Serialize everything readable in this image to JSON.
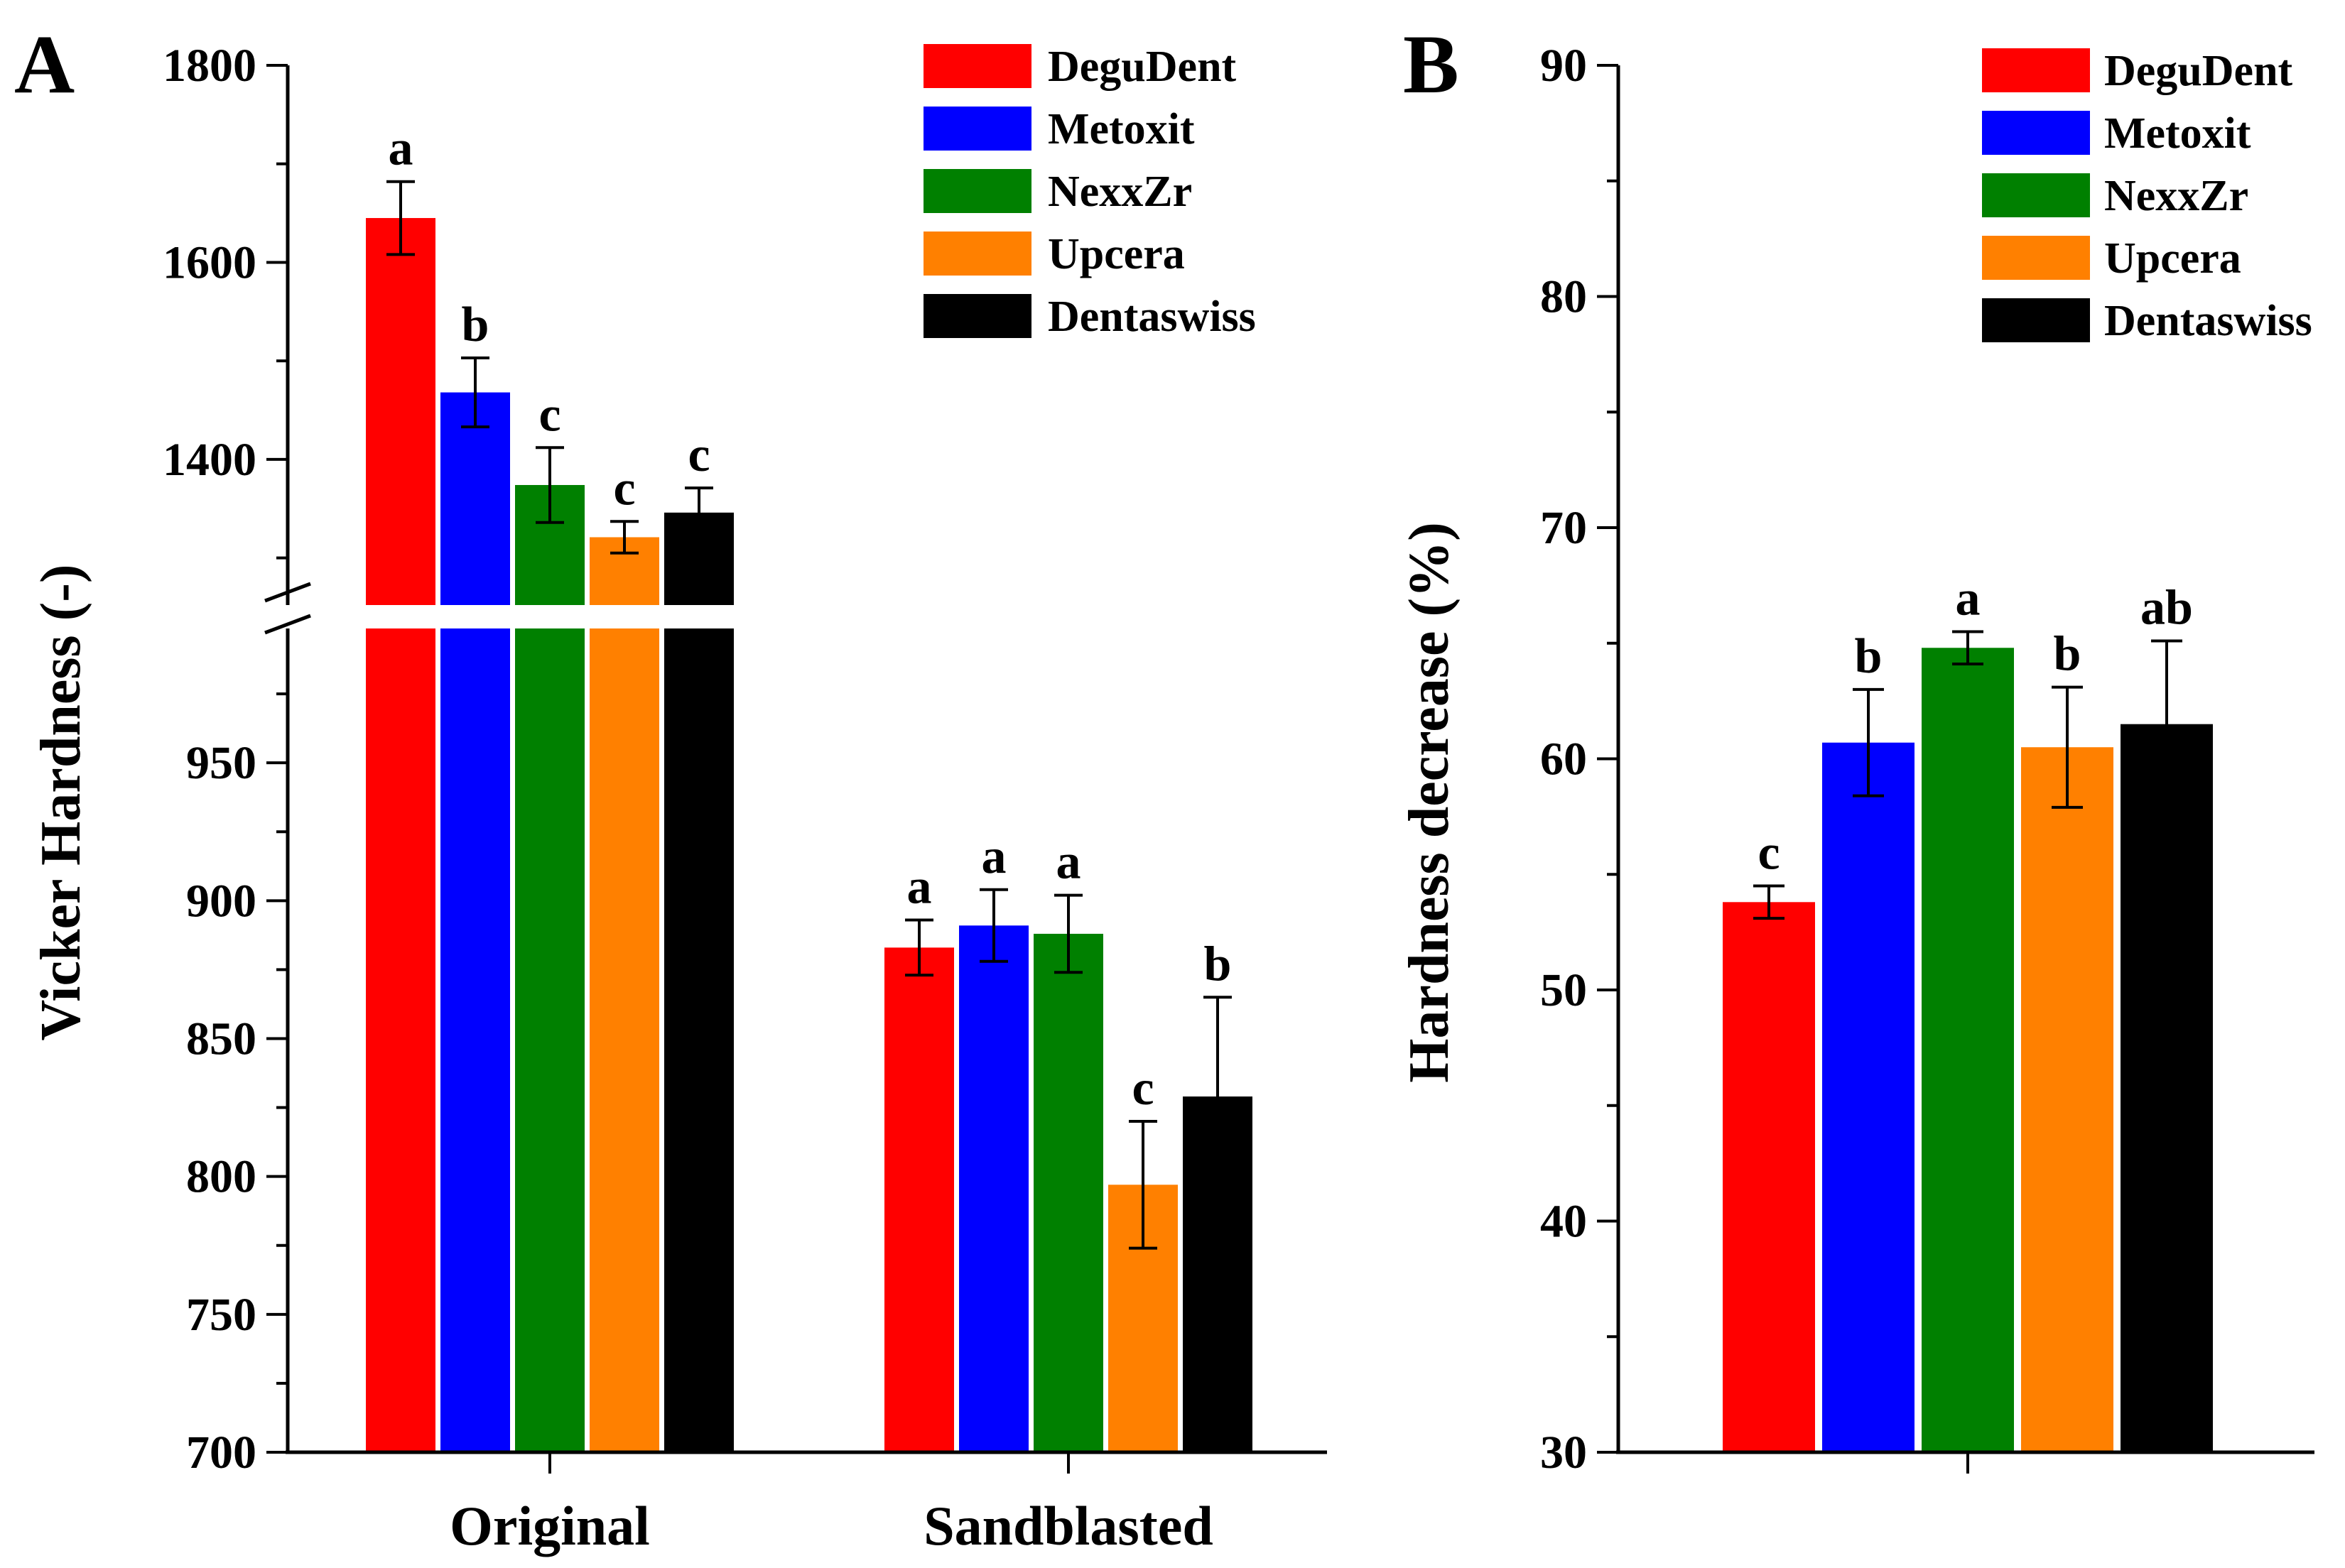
{
  "chart_data": [
    {
      "panel_label": "A",
      "type": "bar",
      "title": "",
      "xlabel": "",
      "ylabel": "Vicker Hardness (-)",
      "categories": [
        "Original",
        "Sandblasted"
      ],
      "axis_break": true,
      "ylim_lower": [
        700,
        1000
      ],
      "ylim_upper": [
        1250,
        1800
      ],
      "yticks_lower": [
        "700",
        "750",
        "800",
        "850",
        "900",
        "950"
      ],
      "yticks_upper": [
        "1400",
        "1600",
        "1800"
      ],
      "series": [
        {
          "name": "DeguDent",
          "color": "#ff0000",
          "values": [
            1645,
            883
          ],
          "errors": [
            37,
            10
          ],
          "labels": [
            "a",
            "a"
          ]
        },
        {
          "name": "Metoxit",
          "color": "#0000ff",
          "values": [
            1468,
            891
          ],
          "errors": [
            35,
            13
          ],
          "labels": [
            "b",
            "a"
          ]
        },
        {
          "name": "NexxZr",
          "color": "#008000",
          "values": [
            1374,
            888
          ],
          "errors": [
            38,
            14
          ],
          "labels": [
            "c",
            "a"
          ]
        },
        {
          "name": "Upcera",
          "color": "#ff8000",
          "values": [
            1321,
            797
          ],
          "errors": [
            16,
            23
          ],
          "labels": [
            "c",
            "c"
          ]
        },
        {
          "name": "Dentaswiss",
          "color": "#000000",
          "values": [
            1346,
            829
          ],
          "errors": [
            25,
            36
          ],
          "labels": [
            "c",
            "b"
          ]
        }
      ],
      "legend": "top-right"
    },
    {
      "panel_label": "B",
      "type": "bar",
      "title": "",
      "xlabel": "",
      "ylabel": "Hardness decrease (%)",
      "categories": [
        ""
      ],
      "ylim": [
        30,
        90
      ],
      "yticks": [
        "30",
        "40",
        "50",
        "60",
        "70",
        "80",
        "90"
      ],
      "series": [
        {
          "name": "DeguDent",
          "color": "#ff0000",
          "values": [
            53.8
          ],
          "errors": [
            0.7
          ],
          "labels": [
            "c"
          ]
        },
        {
          "name": "Metoxit",
          "color": "#0000ff",
          "values": [
            60.7
          ],
          "errors": [
            2.3
          ],
          "labels": [
            "b"
          ]
        },
        {
          "name": "NexxZr",
          "color": "#008000",
          "values": [
            64.8
          ],
          "errors": [
            0.7
          ],
          "labels": [
            "a"
          ]
        },
        {
          "name": "Upcera",
          "color": "#ff8000",
          "values": [
            60.5
          ],
          "errors": [
            2.6
          ],
          "labels": [
            "b"
          ]
        },
        {
          "name": "Dentaswiss",
          "color": "#000000",
          "values": [
            61.5
          ],
          "errors": [
            3.6
          ],
          "labels": [
            "ab"
          ]
        }
      ],
      "legend": "top-right"
    }
  ]
}
